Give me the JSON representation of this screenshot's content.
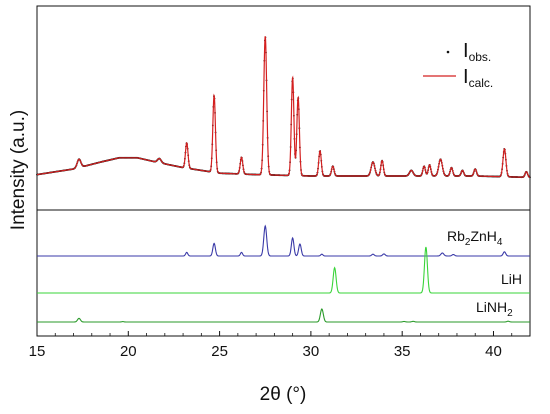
{
  "chart_data": {
    "type": "line",
    "xlabel": "2θ (°)",
    "ylabel": "Intensity (a.u.)",
    "xlim": [
      15,
      42
    ],
    "x_ticks": [
      15,
      20,
      25,
      30,
      35,
      40
    ],
    "x_tick_labels": [
      "15",
      "20",
      "25",
      "30",
      "35",
      "40"
    ],
    "grid": false,
    "panels": [
      {
        "name": "observed-and-calculated",
        "legend_placement": "top-right",
        "series": [
          {
            "name": "Iobs.",
            "legend_main": "I",
            "legend_sub": "obs.",
            "style": "dots",
            "color": "#111111",
            "background": [
              [
                15,
                0.06
              ],
              [
                17,
                0.1
              ],
              [
                18.5,
                0.15
              ],
              [
                19.5,
                0.18
              ],
              [
                20.5,
                0.18
              ],
              [
                21.5,
                0.15
              ],
              [
                23,
                0.11
              ],
              [
                25,
                0.07
              ],
              [
                27,
                0.06
              ],
              [
                30,
                0.05
              ],
              [
                33,
                0.05
              ],
              [
                36,
                0.05
              ],
              [
                39,
                0.05
              ],
              [
                42,
                0.04
              ]
            ],
            "peaks": [
              [
                17.3,
                0.06,
                0.1
              ],
              [
                21.7,
                0.03,
                0.1
              ],
              [
                23.2,
                0.18,
                0.07
              ],
              [
                24.7,
                0.55,
                0.07
              ],
              [
                26.2,
                0.12,
                0.07
              ],
              [
                27.5,
                0.99,
                0.08
              ],
              [
                29.0,
                0.7,
                0.07
              ],
              [
                29.3,
                0.56,
                0.07
              ],
              [
                30.5,
                0.18,
                0.07
              ],
              [
                31.2,
                0.07,
                0.07
              ],
              [
                33.4,
                0.1,
                0.1
              ],
              [
                33.9,
                0.11,
                0.07
              ],
              [
                35.5,
                0.04,
                0.1
              ],
              [
                36.2,
                0.07,
                0.07
              ],
              [
                36.5,
                0.08,
                0.07
              ],
              [
                37.1,
                0.12,
                0.1
              ],
              [
                37.7,
                0.06,
                0.07
              ],
              [
                38.3,
                0.04,
                0.07
              ],
              [
                39.0,
                0.05,
                0.07
              ],
              [
                40.6,
                0.2,
                0.08
              ],
              [
                41.8,
                0.04,
                0.07
              ]
            ]
          },
          {
            "name": "Icalc.",
            "legend_main": "I",
            "legend_sub": "calc.",
            "style": "line",
            "color": "#d42020"
          }
        ]
      },
      {
        "name": "reference-phases",
        "series": [
          {
            "name": "Rb2ZnH4",
            "label_main": "Rb",
            "label_sub1": "2",
            "label_mid": "ZnH",
            "label_sub2": "4",
            "color": "#3a3aa8",
            "peaks": [
              [
                23.2,
                0.12,
                0.06
              ],
              [
                24.7,
                0.42,
                0.07
              ],
              [
                26.2,
                0.12,
                0.06
              ],
              [
                27.5,
                1.0,
                0.08
              ],
              [
                29.0,
                0.6,
                0.07
              ],
              [
                29.4,
                0.4,
                0.07
              ],
              [
                30.6,
                0.06,
                0.06
              ],
              [
                33.4,
                0.06,
                0.07
              ],
              [
                34.0,
                0.07,
                0.07
              ],
              [
                37.2,
                0.1,
                0.08
              ],
              [
                37.8,
                0.05,
                0.07
              ],
              [
                40.6,
                0.14,
                0.07
              ]
            ]
          },
          {
            "name": "LiH",
            "label_main": "LiH",
            "color": "#3ad43a",
            "peaks": [
              [
                31.3,
                0.55,
                0.08
              ],
              [
                36.3,
                1.0,
                0.08
              ]
            ]
          },
          {
            "name": "LiNH2",
            "label_main": "LiNH",
            "label_sub1": "2",
            "color": "#2a9a2a",
            "peaks": [
              [
                17.3,
                0.28,
                0.08
              ],
              [
                19.7,
                0.03,
                0.06
              ],
              [
                30.6,
                1.0,
                0.08
              ],
              [
                35.1,
                0.04,
                0.07
              ],
              [
                35.6,
                0.05,
                0.07
              ],
              [
                40.8,
                0.06,
                0.07
              ]
            ]
          }
        ]
      }
    ]
  }
}
